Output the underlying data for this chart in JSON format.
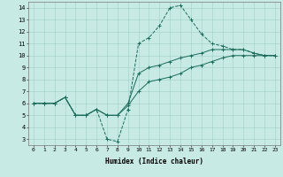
{
  "xlabel": "Humidex (Indice chaleur)",
  "xlim": [
    -0.5,
    23.5
  ],
  "ylim": [
    2.5,
    14.5
  ],
  "xticks": [
    0,
    1,
    2,
    3,
    4,
    5,
    6,
    7,
    8,
    9,
    10,
    11,
    12,
    13,
    14,
    15,
    16,
    17,
    18,
    19,
    20,
    21,
    22,
    23
  ],
  "yticks": [
    3,
    4,
    5,
    6,
    7,
    8,
    9,
    10,
    11,
    12,
    13,
    14
  ],
  "background_color": "#c8eae5",
  "grid_color": "#a0cfc8",
  "line_color": "#1a6b5a",
  "line1_x": [
    0,
    1,
    2,
    3,
    4,
    5,
    6,
    7,
    8,
    9,
    10,
    11,
    12,
    13,
    14,
    15,
    16,
    17,
    18,
    19,
    20,
    21,
    22,
    23
  ],
  "line1_y": [
    6,
    6,
    6,
    6.5,
    5,
    5,
    5.5,
    3.0,
    2.8,
    5.5,
    11.0,
    11.5,
    12.5,
    14.0,
    14.2,
    13.0,
    11.8,
    11.0,
    10.8,
    10.5,
    10.5,
    10.2,
    10.0,
    10.0
  ],
  "line2_x": [
    0,
    1,
    2,
    3,
    4,
    5,
    6,
    7,
    8,
    9,
    10,
    11,
    12,
    13,
    14,
    15,
    16,
    17,
    18,
    19,
    20,
    21,
    22,
    23
  ],
  "line2_y": [
    6,
    6,
    6,
    6.5,
    5,
    5,
    5.5,
    5.0,
    5.0,
    6.0,
    8.5,
    9.0,
    9.2,
    9.5,
    9.8,
    10.0,
    10.2,
    10.5,
    10.5,
    10.5,
    10.5,
    10.2,
    10.0,
    10.0
  ],
  "line3_x": [
    0,
    1,
    2,
    3,
    4,
    5,
    6,
    7,
    8,
    9,
    10,
    11,
    12,
    13,
    14,
    15,
    16,
    17,
    18,
    19,
    20,
    21,
    22,
    23
  ],
  "line3_y": [
    6,
    6,
    6,
    6.5,
    5,
    5,
    5.5,
    5.0,
    5.0,
    5.8,
    7.0,
    7.8,
    8.0,
    8.2,
    8.5,
    9.0,
    9.2,
    9.5,
    9.8,
    10.0,
    10.0,
    10.0,
    10.0,
    10.0
  ]
}
